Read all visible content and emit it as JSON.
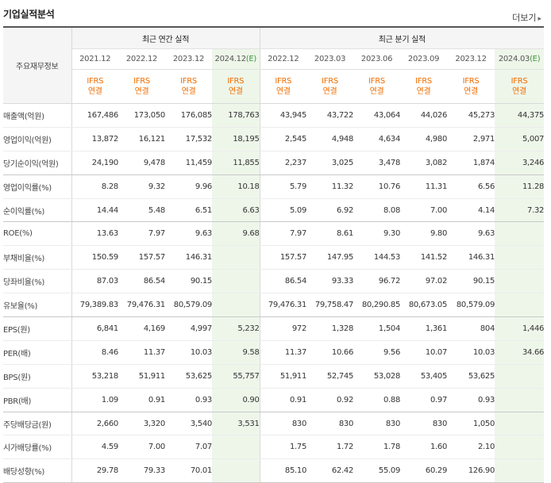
{
  "header": {
    "title": "기업실적분석",
    "more_label": "더보기"
  },
  "table": {
    "corner_label": "주요재무정보",
    "annual_label": "최근 연간 실적",
    "quarter_label": "최근 분기 실적",
    "annual_periods": [
      {
        "date": "2021.12",
        "est": ""
      },
      {
        "date": "2022.12",
        "est": ""
      },
      {
        "date": "2023.12",
        "est": ""
      },
      {
        "date": "2024.12",
        "est": "(E)"
      }
    ],
    "quarter_periods": [
      {
        "date": "2022.12",
        "est": ""
      },
      {
        "date": "2023.03",
        "est": ""
      },
      {
        "date": "2023.06",
        "est": ""
      },
      {
        "date": "2023.09",
        "est": ""
      },
      {
        "date": "2023.12",
        "est": ""
      },
      {
        "date": "2024.03",
        "est": "(E)"
      }
    ],
    "ifrs_line1": "IFRS",
    "ifrs_line2": "연결",
    "rows": [
      {
        "label": "매출액(억원)",
        "values": [
          "167,486",
          "173,050",
          "176,085",
          "178,763",
          "43,945",
          "43,722",
          "43,064",
          "44,026",
          "45,273",
          "44,375"
        ]
      },
      {
        "label": "영업이익(억원)",
        "values": [
          "13,872",
          "16,121",
          "17,532",
          "18,195",
          "2,545",
          "4,948",
          "4,634",
          "4,980",
          "2,971",
          "5,007"
        ]
      },
      {
        "label": "당기순이익(억원)",
        "values": [
          "24,190",
          "9,478",
          "11,459",
          "11,855",
          "2,237",
          "3,025",
          "3,478",
          "3,082",
          "1,874",
          "3,246"
        ]
      },
      {
        "label": "영업이익률(%)",
        "values": [
          "8.28",
          "9.32",
          "9.96",
          "10.18",
          "5.79",
          "11.32",
          "10.76",
          "11.31",
          "6.56",
          "11.28"
        ]
      },
      {
        "label": "순이익률(%)",
        "values": [
          "14.44",
          "5.48",
          "6.51",
          "6.63",
          "5.09",
          "6.92",
          "8.08",
          "7.00",
          "4.14",
          "7.32"
        ]
      },
      {
        "label": "ROE(%)",
        "values": [
          "13.63",
          "7.97",
          "9.63",
          "9.68",
          "7.97",
          "8.61",
          "9.30",
          "9.80",
          "9.63",
          ""
        ]
      },
      {
        "label": "부채비율(%)",
        "values": [
          "150.59",
          "157.57",
          "146.31",
          "",
          "157.57",
          "147.95",
          "144.53",
          "141.52",
          "146.31",
          ""
        ]
      },
      {
        "label": "당좌비율(%)",
        "values": [
          "87.03",
          "86.54",
          "90.15",
          "",
          "86.54",
          "93.33",
          "96.72",
          "97.02",
          "90.15",
          ""
        ]
      },
      {
        "label": "유보율(%)",
        "values": [
          "79,389.83",
          "79,476.31",
          "80,579.09",
          "",
          "79,476.31",
          "79,758.47",
          "80,290.85",
          "80,673.05",
          "80,579.09",
          ""
        ]
      },
      {
        "label": "EPS(원)",
        "values": [
          "6,841",
          "4,169",
          "4,997",
          "5,232",
          "972",
          "1,328",
          "1,504",
          "1,361",
          "804",
          "1,446"
        ]
      },
      {
        "label": "PER(배)",
        "values": [
          "8.46",
          "11.37",
          "10.03",
          "9.58",
          "11.37",
          "10.66",
          "9.56",
          "10.07",
          "10.03",
          "34.66"
        ]
      },
      {
        "label": "BPS(원)",
        "values": [
          "53,218",
          "51,911",
          "53,625",
          "55,757",
          "51,911",
          "52,745",
          "53,028",
          "53,405",
          "53,625",
          ""
        ]
      },
      {
        "label": "PBR(배)",
        "values": [
          "1.09",
          "0.91",
          "0.93",
          "0.90",
          "0.91",
          "0.92",
          "0.88",
          "0.97",
          "0.93",
          ""
        ]
      },
      {
        "label": "주당배당금(원)",
        "values": [
          "2,660",
          "3,320",
          "3,540",
          "3,531",
          "830",
          "830",
          "830",
          "830",
          "1,050",
          ""
        ]
      },
      {
        "label": "시가배당률(%)",
        "values": [
          "4.59",
          "7.00",
          "7.07",
          "",
          "1.75",
          "1.72",
          "1.78",
          "1.60",
          "2.10",
          ""
        ]
      },
      {
        "label": "배당성향(%)",
        "values": [
          "29.78",
          "79.33",
          "70.01",
          "",
          "85.10",
          "62.42",
          "55.09",
          "60.29",
          "126.90",
          ""
        ]
      }
    ]
  }
}
